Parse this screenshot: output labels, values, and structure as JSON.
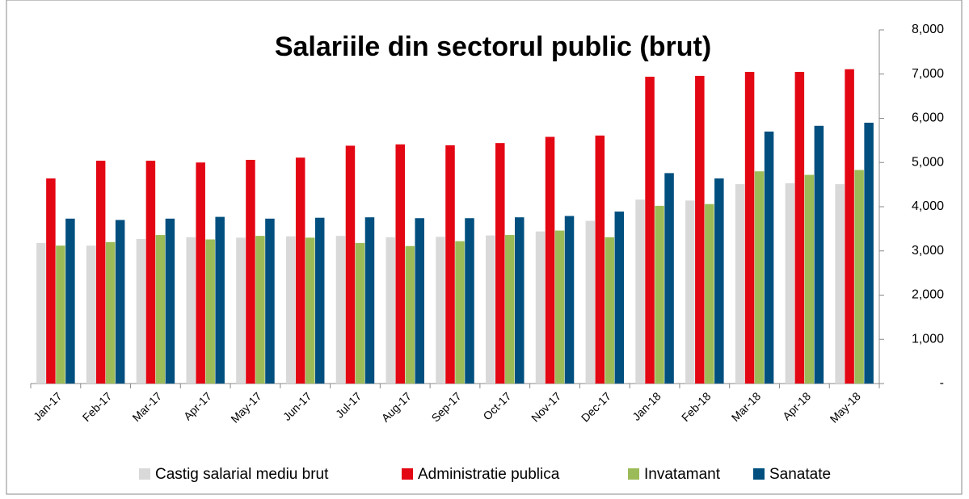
{
  "chart_data": {
    "type": "bar",
    "title": "Salariile din sectorul public (brut)",
    "categories": [
      "Jan-17",
      "Feb-17",
      "Mar-17",
      "Apr-17",
      "May-17",
      "Jun-17",
      "Jul-17",
      "Aug-17",
      "Sep-17",
      "Oct-17",
      "Nov-17",
      "Dec-17",
      "Jan-18",
      "Feb-18",
      "Mar-18",
      "Apr-18",
      "May-18"
    ],
    "series": [
      {
        "name": "Castig salarial mediu brut",
        "color": "#d9d9d9",
        "values": [
          3180,
          3120,
          3270,
          3310,
          3300,
          3330,
          3340,
          3310,
          3320,
          3350,
          3440,
          3680,
          4160,
          4140,
          4510,
          4530,
          4510
        ]
      },
      {
        "name": "Administratie publica",
        "color": "#e30613",
        "values": [
          4640,
          5040,
          5040,
          5000,
          5060,
          5110,
          5380,
          5410,
          5390,
          5440,
          5580,
          5610,
          6940,
          6960,
          7050,
          7050,
          7110
        ]
      },
      {
        "name": "Invatamant",
        "color": "#9bbb59",
        "values": [
          3120,
          3200,
          3360,
          3260,
          3340,
          3300,
          3180,
          3110,
          3220,
          3360,
          3460,
          3310,
          4020,
          4060,
          4800,
          4720,
          4830
        ]
      },
      {
        "name": "Sanatate",
        "color": "#004f7f",
        "values": [
          3730,
          3700,
          3730,
          3770,
          3730,
          3750,
          3760,
          3740,
          3740,
          3760,
          3790,
          3890,
          4760,
          4640,
          5700,
          5830,
          5900
        ]
      }
    ],
    "ylim": [
      0,
      8000
    ],
    "yticks": [
      {
        "value": 0,
        "label": "-"
      },
      {
        "value": 1000,
        "label": "1,000"
      },
      {
        "value": 2000,
        "label": "2,000"
      },
      {
        "value": 3000,
        "label": "3,000"
      },
      {
        "value": 4000,
        "label": "4,000"
      },
      {
        "value": 5000,
        "label": "5,000"
      },
      {
        "value": 6000,
        "label": "6,000"
      },
      {
        "value": 7000,
        "label": "7,000"
      },
      {
        "value": 8000,
        "label": "8,000"
      }
    ],
    "y_axis_side": "right"
  }
}
